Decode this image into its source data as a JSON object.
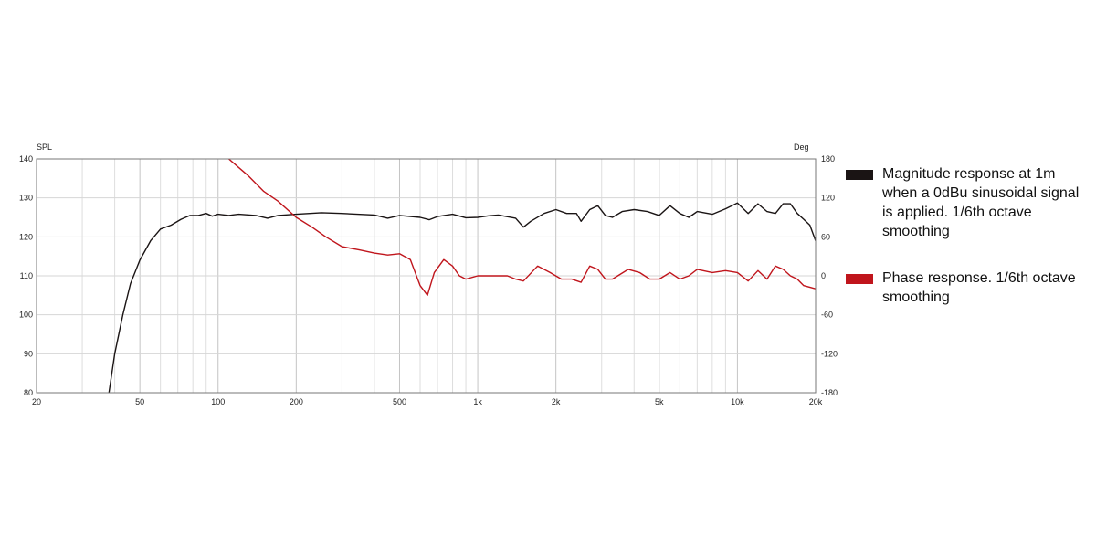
{
  "chart_data": {
    "type": "line",
    "x_scale": "log",
    "xlim": [
      20,
      20000
    ],
    "x_ticks": [
      20,
      50,
      100,
      200,
      500,
      1000,
      2000,
      5000,
      10000,
      20000
    ],
    "x_tick_labels": [
      "20",
      "50",
      "100",
      "200",
      "500",
      "1k",
      "2k",
      "5k",
      "10k",
      "20k"
    ],
    "y_left": {
      "label": "SPL",
      "ylim": [
        80,
        140
      ],
      "ticks": [
        80,
        90,
        100,
        110,
        120,
        130,
        140
      ],
      "tick_labels": [
        "80",
        "90",
        "100",
        "110",
        "120",
        "130",
        "140"
      ]
    },
    "y_right": {
      "label": "Deg",
      "ylim": [
        -180,
        180
      ],
      "ticks": [
        -180,
        -120,
        -60,
        0,
        60,
        120,
        180
      ],
      "tick_labels": [
        "-180",
        "-120",
        "-60",
        "0",
        "60",
        "120",
        "180"
      ]
    },
    "grid": true,
    "legend_position": "right",
    "series": [
      {
        "name": "Magnitude response at 1m when a 0dBu sinusoidal signal is applied. 1/6th octave smoothing",
        "color": "#1a1414",
        "axis": "left",
        "points": [
          [
            38,
            80
          ],
          [
            40,
            90
          ],
          [
            43,
            100
          ],
          [
            46,
            108
          ],
          [
            50,
            114
          ],
          [
            55,
            119
          ],
          [
            60,
            122
          ],
          [
            66,
            123
          ],
          [
            72,
            124.5
          ],
          [
            78,
            125.5
          ],
          [
            84,
            125.5
          ],
          [
            90,
            126
          ],
          [
            95,
            125.3
          ],
          [
            100,
            125.8
          ],
          [
            110,
            125.5
          ],
          [
            120,
            125.8
          ],
          [
            140,
            125.5
          ],
          [
            155,
            124.8
          ],
          [
            170,
            125.5
          ],
          [
            200,
            125.8
          ],
          [
            250,
            126.2
          ],
          [
            300,
            126
          ],
          [
            400,
            125.6
          ],
          [
            450,
            124.8
          ],
          [
            500,
            125.5
          ],
          [
            600,
            125
          ],
          [
            650,
            124.4
          ],
          [
            700,
            125.2
          ],
          [
            800,
            125.8
          ],
          [
            900,
            124.9
          ],
          [
            1000,
            125
          ],
          [
            1100,
            125.4
          ],
          [
            1200,
            125.6
          ],
          [
            1400,
            124.8
          ],
          [
            1500,
            122.5
          ],
          [
            1600,
            124
          ],
          [
            1800,
            126
          ],
          [
            2000,
            127
          ],
          [
            2200,
            126
          ],
          [
            2400,
            126
          ],
          [
            2500,
            124
          ],
          [
            2700,
            127
          ],
          [
            2900,
            128
          ],
          [
            3100,
            125.5
          ],
          [
            3300,
            125
          ],
          [
            3600,
            126.5
          ],
          [
            4000,
            127
          ],
          [
            4500,
            126.5
          ],
          [
            5000,
            125.5
          ],
          [
            5500,
            128
          ],
          [
            6000,
            126
          ],
          [
            6500,
            125
          ],
          [
            7000,
            126.5
          ],
          [
            8000,
            125.8
          ],
          [
            9000,
            127.2
          ],
          [
            10000,
            128.7
          ],
          [
            11000,
            126
          ],
          [
            12000,
            128.5
          ],
          [
            13000,
            126.5
          ],
          [
            14000,
            126
          ],
          [
            15000,
            128.5
          ],
          [
            16000,
            128.5
          ],
          [
            17000,
            126
          ],
          [
            18000,
            124.5
          ],
          [
            19000,
            123
          ],
          [
            20000,
            119
          ]
        ]
      },
      {
        "name": "Phase response. 1/6th octave smoothing",
        "color": "#c0151c",
        "axis": "right",
        "points": [
          [
            110,
            180
          ],
          [
            130,
            155
          ],
          [
            150,
            130
          ],
          [
            170,
            115
          ],
          [
            200,
            90
          ],
          [
            230,
            75
          ],
          [
            260,
            60
          ],
          [
            300,
            45
          ],
          [
            350,
            40
          ],
          [
            400,
            35
          ],
          [
            450,
            32
          ],
          [
            500,
            34
          ],
          [
            550,
            25
          ],
          [
            600,
            -15
          ],
          [
            640,
            -30
          ],
          [
            680,
            5
          ],
          [
            740,
            25
          ],
          [
            800,
            15
          ],
          [
            850,
            0
          ],
          [
            900,
            -5
          ],
          [
            1000,
            0
          ],
          [
            1200,
            0
          ],
          [
            1300,
            0
          ],
          [
            1400,
            -5
          ],
          [
            1500,
            -8
          ],
          [
            1700,
            15
          ],
          [
            1900,
            5
          ],
          [
            2100,
            -5
          ],
          [
            2300,
            -5
          ],
          [
            2500,
            -10
          ],
          [
            2700,
            15
          ],
          [
            2900,
            10
          ],
          [
            3100,
            -5
          ],
          [
            3300,
            -5
          ],
          [
            3800,
            10
          ],
          [
            4200,
            5
          ],
          [
            4600,
            -5
          ],
          [
            5000,
            -5
          ],
          [
            5500,
            5
          ],
          [
            6000,
            -5
          ],
          [
            6500,
            0
          ],
          [
            7000,
            10
          ],
          [
            8000,
            5
          ],
          [
            9000,
            8
          ],
          [
            10000,
            5
          ],
          [
            11000,
            -8
          ],
          [
            12000,
            8
          ],
          [
            13000,
            -5
          ],
          [
            14000,
            15
          ],
          [
            15000,
            10
          ],
          [
            16000,
            0
          ],
          [
            17000,
            -5
          ],
          [
            18000,
            -15
          ],
          [
            20000,
            -20
          ]
        ]
      }
    ]
  },
  "legend": {
    "items": [
      {
        "label": "Magnitude response at 1m when a 0dBu sinusoidal signal is applied. 1/6th octave smoothing",
        "color": "#1a1414"
      },
      {
        "label": "Phase response. 1/6th octave smoothing",
        "color": "#c0151c"
      }
    ]
  }
}
